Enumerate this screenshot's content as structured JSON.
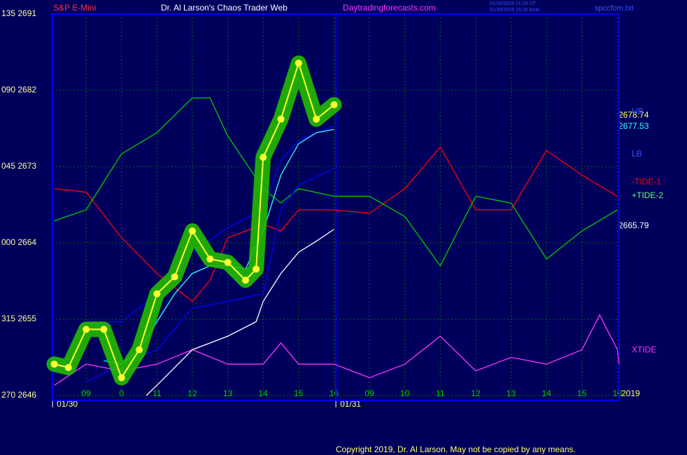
{
  "chart_data": {
    "type": "line",
    "header": {
      "symbol": "S&P E-Mini",
      "title": "Dr. Al Larson's Chaos Trader Web",
      "site": "Daytradingforecasts.com",
      "stamp_ut": "01/30/2019 21:20 UT",
      "stamp_local": "01/30/2019 15:20 local",
      "file": "spccfom.txt"
    },
    "annotations": {
      "price_last": "2678.74",
      "avg_last": "2677.53",
      "slow_last": "2665.79",
      "year": "2019",
      "copyright": "Copyright 2019, Dr. Al Larson. May not be copied by any means."
    },
    "dates": [
      {
        "value": 0,
        "label": "01/30"
      },
      {
        "value": 8,
        "label": "01/31"
      }
    ],
    "xlim": [
      -0.95,
      15.05
    ],
    "xticks": [
      {
        "value": 0,
        "label": "09"
      },
      {
        "value": 1,
        "label": "0"
      },
      {
        "value": 2,
        "label": "11"
      },
      {
        "value": 3,
        "label": "12"
      },
      {
        "value": 4,
        "label": "13"
      },
      {
        "value": 5,
        "label": "14"
      },
      {
        "value": 6,
        "label": "15"
      },
      {
        "value": 7,
        "label": "16"
      },
      {
        "value": 8,
        "label": "09"
      },
      {
        "value": 9,
        "label": "10"
      },
      {
        "value": 10,
        "label": "11"
      },
      {
        "value": 11,
        "label": "12"
      },
      {
        "value": 12,
        "label": "13"
      },
      {
        "value": 13,
        "label": "14"
      },
      {
        "value": 14,
        "label": "15"
      },
      {
        "value": 15,
        "label": "16"
      }
    ],
    "ylim": [
      2646,
      2691
    ],
    "yticks": [
      {
        "value": 2646,
        "label": "270 2646"
      },
      {
        "value": 2655,
        "label": "315 2655"
      },
      {
        "value": 2664,
        "label": "000 2664"
      },
      {
        "value": 2673,
        "label": "045 2673"
      },
      {
        "value": 2682,
        "label": "090 2682"
      },
      {
        "value": 2691,
        "label": "135 2691"
      }
    ],
    "grid": true,
    "series": [
      {
        "color": "#ff0000",
        "name": "-TIDE-1",
        "x": [
          -0.9,
          0,
          1,
          2,
          3,
          3.5,
          4,
          5,
          5.5,
          6,
          7,
          8,
          9,
          10,
          11,
          12,
          13,
          14,
          15
        ],
        "values": [
          2670.4,
          2670.0,
          2664.6,
          2660.4,
          2657.1,
          2659.6,
          2664.6,
          2666.2,
          2665.4,
          2667.9,
          2667.9,
          2667.5,
          2670.4,
          2675.3,
          2667.9,
          2667.9,
          2674.9,
          2672.0,
          2669.5
        ]
      },
      {
        "color": "#00cc00",
        "name": "+TIDE-2",
        "x": [
          -0.9,
          0,
          1,
          2,
          3,
          3.5,
          4,
          5,
          5.5,
          6,
          7,
          8,
          9,
          10,
          11,
          12,
          13,
          14,
          15
        ],
        "values": [
          2666.6,
          2667.9,
          2674.5,
          2677.0,
          2681.1,
          2681.1,
          2676.6,
          2670.4,
          2668.7,
          2670.4,
          2669.5,
          2669.5,
          2667.1,
          2661.3,
          2669.5,
          2668.7,
          2662.1,
          2665.4,
          2667.9
        ]
      },
      {
        "color": "#ff33ff",
        "name": "XTIDE",
        "x": [
          -0.9,
          0,
          1,
          2,
          3,
          4,
          5,
          5.5,
          6,
          7,
          8,
          9,
          10,
          11,
          12,
          13,
          14,
          14.5,
          15,
          15.05
        ],
        "values": [
          2647.2,
          2649.7,
          2648.9,
          2649.7,
          2651.4,
          2649.7,
          2649.7,
          2652.2,
          2649.7,
          2649.7,
          2648.1,
          2649.7,
          2653.0,
          2648.9,
          2650.5,
          2649.7,
          2651.4,
          2655.5,
          2651.4,
          2649.7
        ]
      },
      {
        "color": "#0000ff",
        "name": "UB",
        "x": [
          0,
          1,
          2,
          3,
          4,
          5,
          5.5,
          6,
          7
        ],
        "values": [
          2654.7,
          2654.7,
          2658.0,
          2662.9,
          2665.8,
          2667.9,
          2673.7,
          2676.1,
          2677.8
        ]
      },
      {
        "color": "#0000ff",
        "name": "LB",
        "x": [
          0,
          1,
          2,
          3,
          4,
          5,
          5.5,
          6,
          7
        ],
        "values": [
          2647.6,
          2649.7,
          2651.4,
          2656.3,
          2657.1,
          2658.0,
          2667.9,
          2670.8,
          2672.8
        ]
      },
      {
        "color": "#ffffff",
        "x": [
          1.7,
          2,
          3,
          4,
          4.8,
          5,
          5.5,
          6,
          6.5,
          7
        ],
        "values": [
          2646.0,
          2647.2,
          2651.4,
          2653.0,
          2654.7,
          2657.1,
          2660.4,
          2662.9,
          2664.2,
          2665.6
        ]
      },
      {
        "color": "#33ffff",
        "x": [
          0.5,
          1,
          1.5,
          2,
          2.5,
          3,
          3.5,
          4,
          4.5,
          5,
          5.5,
          6,
          6.5,
          7
        ],
        "values": [
          2650.1,
          2649.7,
          2651.4,
          2654.7,
          2658.0,
          2660.4,
          2661.3,
          2661.3,
          2660.9,
          2665.4,
          2672.0,
          2675.7,
          2677.0,
          2677.4
        ]
      },
      {
        "color": "#ffff33",
        "glow": "#22bb00",
        "x": [
          -0.9,
          -0.5,
          0,
          0.5,
          1,
          1.5,
          2,
          2.5,
          3,
          3.5,
          4,
          4.5,
          4.8,
          5,
          5.5,
          6,
          6.5,
          7
        ],
        "values": [
          2649.7,
          2649.3,
          2653.8,
          2653.8,
          2648.1,
          2651.4,
          2658.0,
          2660.0,
          2665.4,
          2662.1,
          2661.7,
          2659.6,
          2660.9,
          2674.1,
          2678.6,
          2685.2,
          2678.6,
          2680.3
        ]
      }
    ]
  }
}
